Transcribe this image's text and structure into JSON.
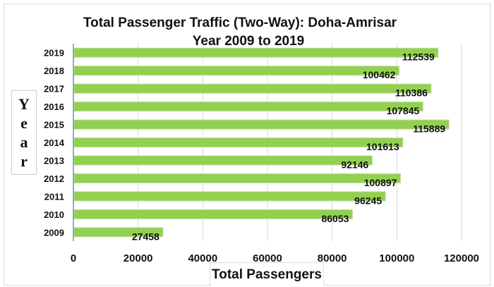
{
  "chart_data": {
    "type": "bar",
    "orientation": "horizontal",
    "title": "Total Passenger Traffic (Two-Way): Doha-Amrisar",
    "subtitle": "Year 2009 to 2019",
    "xlabel": "Total Passengers",
    "ylabel_letters": [
      "Y",
      "e",
      "a",
      "r"
    ],
    "ylabel": "Year",
    "categories": [
      "2019",
      "2018",
      "2017",
      "2016",
      "2015",
      "2014",
      "2013",
      "2012",
      "2011",
      "2010",
      "2009"
    ],
    "values": [
      112539,
      100462,
      110386,
      107845,
      115889,
      101613,
      92146,
      100897,
      96245,
      86053,
      27458
    ],
    "data_labels": [
      "112539",
      "100462",
      "110386",
      "107845",
      "115889",
      "101613",
      "92146",
      "100897",
      "96245",
      "86053",
      "27458"
    ],
    "xticks": [
      "0",
      "20000",
      "40000",
      "60000",
      "80000",
      "100000",
      "120000"
    ],
    "xlim": [
      0,
      120000
    ],
    "grid": true,
    "bar_color": "#92d050"
  }
}
